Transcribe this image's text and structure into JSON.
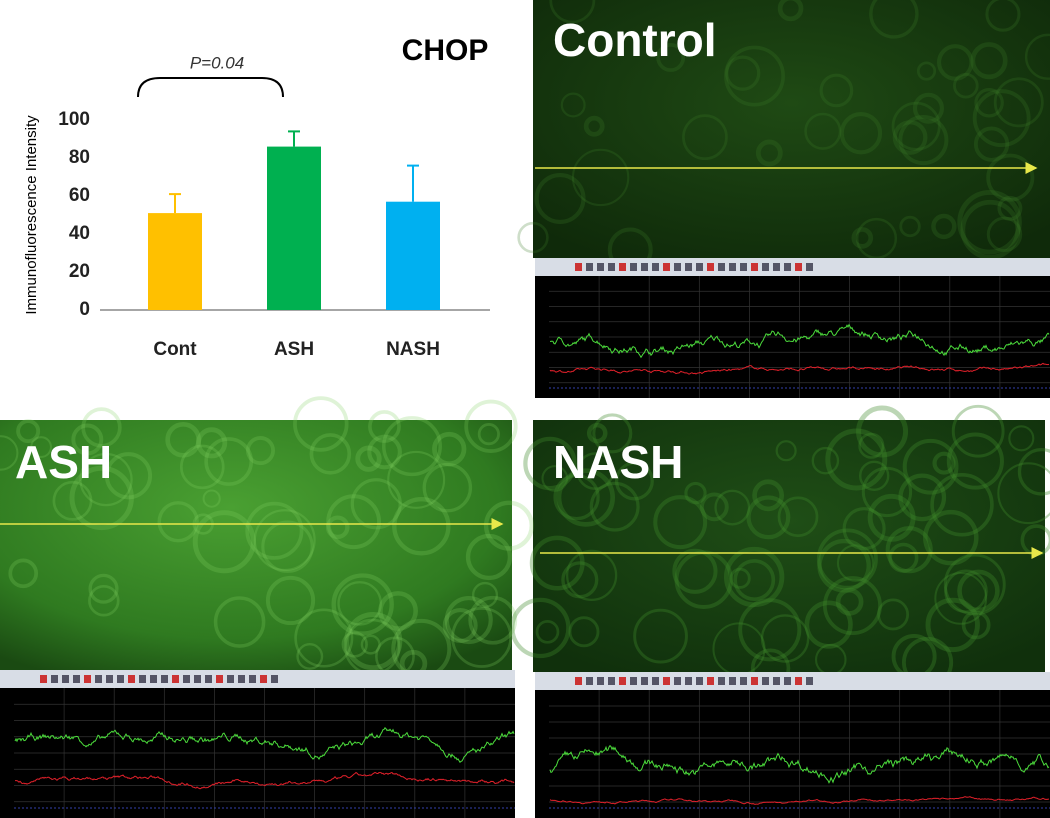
{
  "chart_data": {
    "type": "bar",
    "title": "CHOP",
    "annotation": "P=0.04",
    "y_label": "Immunofluorescence Intensity",
    "categories": [
      "Cont",
      "ASH",
      "NASH"
    ],
    "values": [
      51,
      86,
      57
    ],
    "errors": [
      10,
      8,
      19
    ],
    "colors": [
      "#ffc000",
      "#00b050",
      "#00b0f0"
    ],
    "ylim": [
      0,
      100
    ],
    "yticks": [
      0,
      20,
      40,
      60,
      80,
      100
    ]
  },
  "panels": [
    {
      "label": "Control"
    },
    {
      "label": "ASH"
    },
    {
      "label": "NASH"
    }
  ]
}
